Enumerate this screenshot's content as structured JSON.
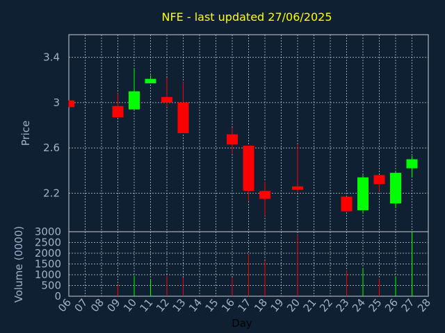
{
  "chart_data": {
    "type": "candlestick",
    "title": "NFE - last updated 27/06/2025",
    "xlabel": "Day",
    "price_panel": {
      "ylabel": "Price",
      "ylim": [
        1.86,
        3.6
      ],
      "yticks": [
        "2.2",
        "2.6",
        "3",
        "3.4"
      ],
      "grid": true
    },
    "volume_panel": {
      "ylabel": "Volume (0000)",
      "ylim": [
        0,
        3000
      ],
      "yticks": [
        "0",
        "500",
        "1000",
        "1500",
        "2000",
        "2500",
        "3000"
      ],
      "grid": true
    },
    "x_ticks": [
      "06",
      "07",
      "08",
      "09",
      "10",
      "11",
      "12",
      "13",
      "14",
      "15",
      "16",
      "17",
      "18",
      "19",
      "20",
      "21",
      "22",
      "23",
      "24",
      "25",
      "26",
      "27",
      "28"
    ],
    "candles": [
      {
        "day": "06",
        "open": 3.02,
        "high": 3.02,
        "low": 2.96,
        "close": 2.96,
        "volume": 0
      },
      {
        "day": "09",
        "open": 2.97,
        "high": 3.08,
        "low": 2.87,
        "close": 2.87,
        "volume": 520
      },
      {
        "day": "10",
        "open": 2.94,
        "high": 3.3,
        "low": 2.94,
        "close": 3.1,
        "volume": 950
      },
      {
        "day": "11",
        "open": 3.17,
        "high": 3.24,
        "low": 3.17,
        "close": 3.21,
        "volume": 780
      },
      {
        "day": "12",
        "open": 3.05,
        "high": 3.22,
        "low": 2.96,
        "close": 3.0,
        "volume": 950
      },
      {
        "day": "13",
        "open": 3.0,
        "high": 3.18,
        "low": 2.73,
        "close": 2.73,
        "volume": 870
      },
      {
        "day": "16",
        "open": 2.72,
        "high": 2.78,
        "low": 2.55,
        "close": 2.63,
        "volume": 860
      },
      {
        "day": "17",
        "open": 2.62,
        "high": 2.62,
        "low": 2.13,
        "close": 2.22,
        "volume": 1960
      },
      {
        "day": "18",
        "open": 2.22,
        "high": 2.3,
        "low": 2.0,
        "close": 2.15,
        "volume": 1640
      },
      {
        "day": "20",
        "open": 2.26,
        "high": 2.63,
        "low": 2.21,
        "close": 2.23,
        "volume": 2850
      },
      {
        "day": "23",
        "open": 2.17,
        "high": 2.17,
        "low": 2.04,
        "close": 2.04,
        "volume": 1180
      },
      {
        "day": "24",
        "open": 2.05,
        "high": 2.36,
        "low": 2.02,
        "close": 2.34,
        "volume": 1300
      },
      {
        "day": "25",
        "open": 2.36,
        "high": 2.36,
        "low": 2.22,
        "close": 2.28,
        "volume": 790
      },
      {
        "day": "26",
        "open": 2.11,
        "high": 2.39,
        "low": 2.07,
        "close": 2.38,
        "volume": 920
      },
      {
        "day": "27",
        "open": 2.42,
        "high": 2.53,
        "low": 2.34,
        "close": 2.5,
        "volume": 3000
      }
    ],
    "colors": {
      "background": "#0f2033",
      "up": "#00ff00",
      "down": "#ff0000",
      "title": "#ffff00",
      "text": "#9fb3c8",
      "grid": "#c8d0d8",
      "xlabel": "#000000"
    }
  }
}
